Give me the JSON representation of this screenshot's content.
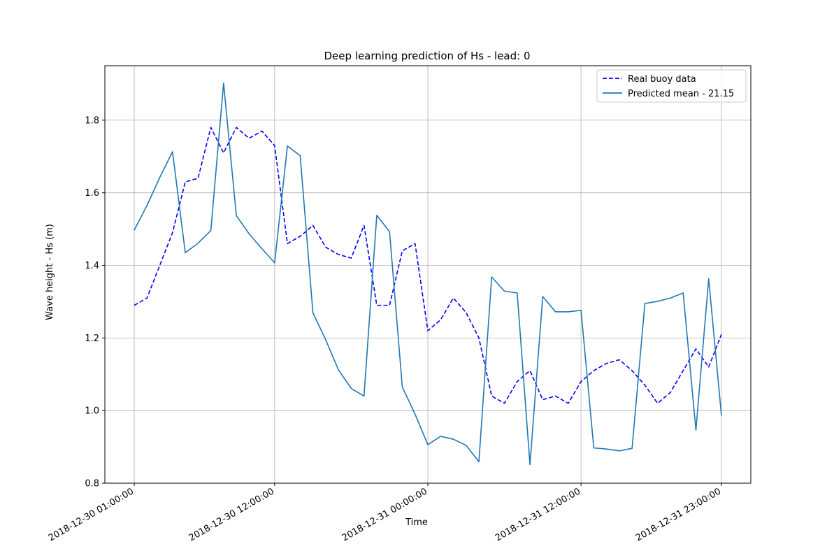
{
  "chart_data": {
    "type": "line",
    "title": "Deep learning prediction of Hs - lead: 0",
    "xlabel": "Time",
    "ylabel": "Wave height - Hs (m)",
    "ylim": [
      0.8,
      1.95
    ],
    "yticks": [
      "0.8",
      "1.0",
      "1.2",
      "1.4",
      "1.6",
      "1.8"
    ],
    "ytick_values": [
      0.8,
      1.0,
      1.2,
      1.4,
      1.6,
      1.8
    ],
    "xticks": [
      "2018-12-30 01:00:00",
      "2018-12-30 12:00:00",
      "2018-12-31 00:00:00",
      "2018-12-31 12:00:00",
      "2018-12-31 23:00:00"
    ],
    "xtick_positions": [
      0,
      11,
      23,
      35,
      46
    ],
    "xlim": [
      -2.3,
      48.3
    ],
    "grid": true,
    "legend_position": "top-right",
    "series": [
      {
        "name": "Real buoy data",
        "color": "#0000ff",
        "style": "dashed",
        "values": [
          1.29,
          1.31,
          1.4,
          1.49,
          1.63,
          1.64,
          1.78,
          1.71,
          1.78,
          1.75,
          1.77,
          1.73,
          1.46,
          1.48,
          1.51,
          1.45,
          1.43,
          1.42,
          1.51,
          1.29,
          1.29,
          1.44,
          1.46,
          1.22,
          1.25,
          1.31,
          1.27,
          1.2,
          1.04,
          1.02,
          1.08,
          1.11,
          1.03,
          1.04,
          1.02,
          1.08,
          1.11,
          1.13,
          1.14,
          1.11,
          1.07,
          1.02,
          1.05,
          1.11,
          1.17,
          1.12,
          1.21
        ]
      },
      {
        "name": "Predicted mean - 21.15",
        "color": "#1f77b4",
        "style": "solid",
        "values": [
          1.497,
          1.565,
          1.642,
          1.713,
          1.435,
          1.461,
          1.496,
          1.902,
          1.537,
          1.487,
          1.446,
          1.407,
          1.729,
          1.702,
          1.269,
          1.195,
          1.112,
          1.061,
          1.04,
          1.538,
          1.493,
          1.065,
          0.99,
          0.906,
          0.929,
          0.921,
          0.904,
          0.859,
          1.368,
          1.329,
          1.324,
          0.851,
          1.314,
          1.272,
          1.272,
          1.276,
          0.897,
          0.894,
          0.889,
          0.896,
          1.295,
          1.301,
          1.31,
          1.324,
          0.946,
          1.363,
          0.986
        ]
      }
    ]
  }
}
